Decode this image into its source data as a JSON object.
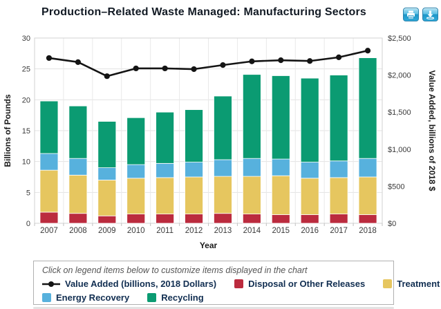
{
  "header": {
    "title": "Production–Related Waste Managed: Manufacturing Sectors",
    "buttons": [
      {
        "name": "print",
        "icon": "printer-icon"
      },
      {
        "name": "download",
        "icon": "download-icon"
      }
    ]
  },
  "chart_data": {
    "type": "combo-stacked-bar-line",
    "title": "Production–Related Waste Managed: Manufacturing Sectors",
    "categories": [
      "2007",
      "2008",
      "2009",
      "2010",
      "2011",
      "2012",
      "2013",
      "2014",
      "2015",
      "2016",
      "2017",
      "2018"
    ],
    "bar_unit": "billions of pounds",
    "bar_series": [
      {
        "name": "Disposal or Other Releases",
        "color": "#bb2b3e",
        "values": [
          1.8,
          1.6,
          1.2,
          1.5,
          1.5,
          1.5,
          1.6,
          1.5,
          1.4,
          1.4,
          1.5,
          1.4
        ]
      },
      {
        "name": "Treatment",
        "color": "#e6c65f",
        "values": [
          6.8,
          6.2,
          5.8,
          5.8,
          5.9,
          6.0,
          6.0,
          6.1,
          6.3,
          5.9,
          5.9,
          6.1
        ]
      },
      {
        "name": "Energy Recovery",
        "color": "#57b1dd",
        "values": [
          2.7,
          2.7,
          2.0,
          2.2,
          2.3,
          2.4,
          2.7,
          2.9,
          2.7,
          2.6,
          2.7,
          3.0
        ]
      },
      {
        "name": "Recycling",
        "color": "#0b9b72",
        "values": [
          8.5,
          8.5,
          7.5,
          7.6,
          8.3,
          8.5,
          10.3,
          13.6,
          13.5,
          13.6,
          13.9,
          16.3
        ]
      }
    ],
    "line_series": {
      "name": "Value Added (billions, 2018 Dollars)",
      "color": "#141414",
      "axis": "right",
      "values": [
        2230,
        2175,
        1985,
        2090,
        2090,
        2080,
        2135,
        2185,
        2200,
        2190,
        2240,
        2330
      ]
    },
    "y_left": {
      "label": "Billions of Pounds",
      "min": 0,
      "max": 30,
      "step": 5
    },
    "y_right": {
      "label": "Value Added, billions of 2018 $",
      "min": 0,
      "max": 2500,
      "step": 500,
      "prefix": "$"
    },
    "x_label": "Year",
    "grid": true,
    "legend_position": "bottom"
  },
  "legend": {
    "note": "Click on legend items below to customize items displayed in the chart",
    "rows": [
      [
        {
          "type": "line",
          "label": "Value Added (billions, 2018 Dollars)",
          "color": "#141414"
        },
        {
          "type": "square",
          "label": "Disposal or Other Releases",
          "color": "#bb2b3e"
        },
        {
          "type": "square",
          "label": "Treatment",
          "color": "#e6c65f"
        }
      ],
      [
        {
          "type": "square",
          "label": "Energy Recovery",
          "color": "#57b1dd"
        },
        {
          "type": "square",
          "label": "Recycling",
          "color": "#0b9b72"
        }
      ]
    ]
  }
}
